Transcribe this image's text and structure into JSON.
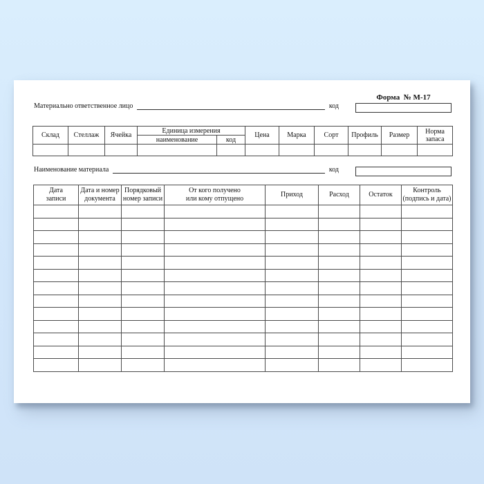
{
  "form": {
    "form_number": "Форма  № М-17",
    "responsible_person_label": "Материально ответственное лицо",
    "responsible_person_code_label": "код",
    "material_name_label": "Наименование материала",
    "material_name_code_label": "код"
  },
  "spec_table": {
    "headers": {
      "warehouse": "Склад",
      "rack": "Стеллаж",
      "cell": "Ячейка",
      "unit_group": "Единица измерения",
      "unit_name": "наименование",
      "unit_code": "код",
      "price": "Цена",
      "brand": "Марка",
      "grade": "Сорт",
      "profile": "Профиль",
      "size": "Размер",
      "stock_norm": "Норма\nзапаса"
    },
    "empty_row_count": 1,
    "column_count": 11
  },
  "ledger_table": {
    "headers": [
      "Дата\nзаписи",
      "Дата и номер\nдокумента",
      "Порядковый\nномер записи",
      "От кого получено\nили кому отпущено",
      "Приход",
      "Расход",
      "Остаток",
      "Контроль\n(подпись и дата)"
    ],
    "empty_row_count": 13,
    "column_count": 8
  },
  "colors": {
    "background_top": "#daeefd",
    "background_bottom": "#cfe3f8",
    "paper": "#ffffff",
    "table_border": "#4a4a4a",
    "text": "#111111"
  }
}
